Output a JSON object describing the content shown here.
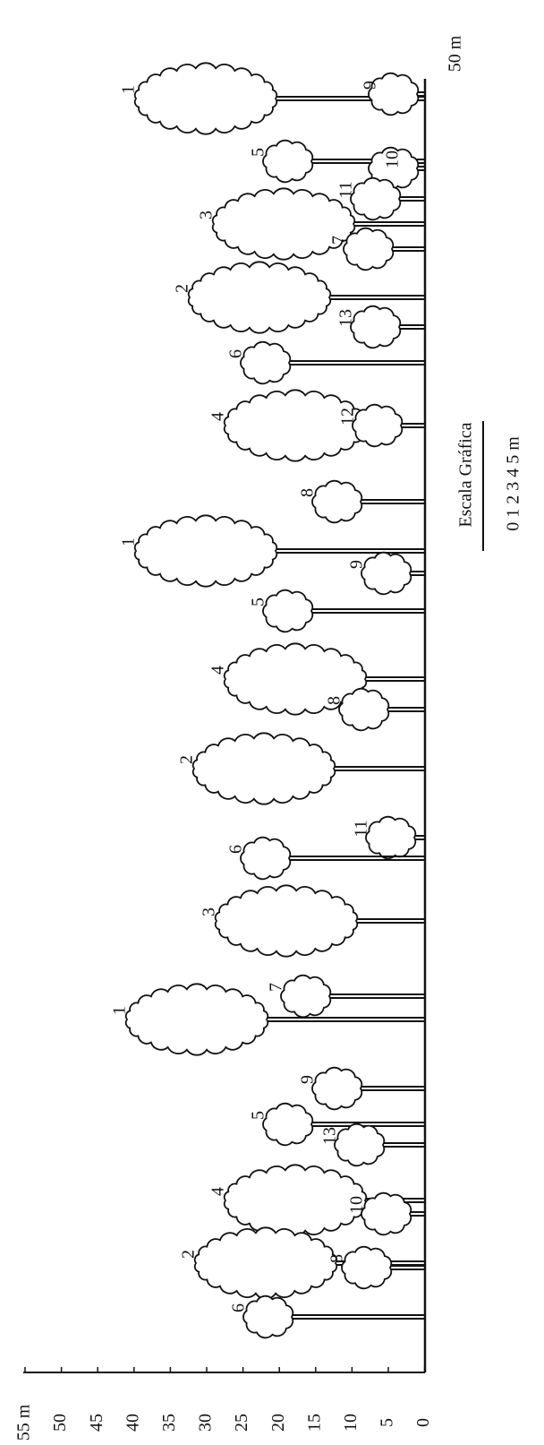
{
  "height_axis": {
    "ticks": [
      "55 m",
      "50",
      "45",
      "40",
      "35",
      "30",
      "25",
      "20",
      "15",
      "10",
      "5",
      "0"
    ]
  },
  "length_label": "50 m",
  "scale": {
    "title": "Escala Gráfica",
    "label": "0 1 2 3 4 5 m"
  },
  "trees": [
    {
      "label": "1"
    },
    {
      "label": "9"
    },
    {
      "label": "5"
    },
    {
      "label": "10"
    },
    {
      "label": "11"
    },
    {
      "label": "3"
    },
    {
      "label": "7"
    },
    {
      "label": "2"
    },
    {
      "label": "13"
    },
    {
      "label": "6"
    },
    {
      "label": "4"
    },
    {
      "label": "12"
    },
    {
      "label": "8"
    },
    {
      "label": "1"
    },
    {
      "label": "9"
    },
    {
      "label": "5"
    },
    {
      "label": "4"
    },
    {
      "label": "8"
    },
    {
      "label": "2"
    },
    {
      "label": "11"
    },
    {
      "label": "6"
    },
    {
      "label": "3"
    },
    {
      "label": "7"
    },
    {
      "label": "1"
    },
    {
      "label": "9"
    },
    {
      "label": "5"
    },
    {
      "label": "13"
    },
    {
      "label": "4"
    },
    {
      "label": "10"
    },
    {
      "label": "2"
    },
    {
      "label": "8"
    },
    {
      "label": "6"
    }
  ]
}
